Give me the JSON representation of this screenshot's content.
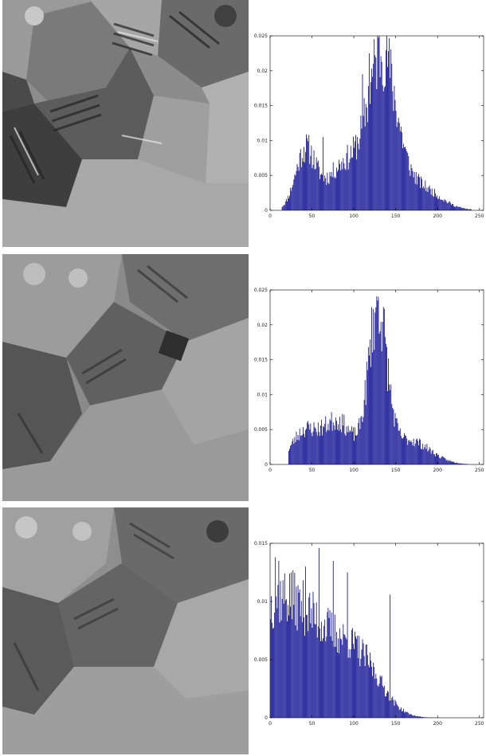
{
  "colors": {
    "bar": "#00008b",
    "axis": "#000000"
  },
  "chart_data": [
    {
      "type": "bar",
      "title": "",
      "xlabel": "",
      "ylabel": "",
      "xlim": [
        0,
        255
      ],
      "ylim": [
        0,
        0.025
      ],
      "x_ticks": [
        "0",
        "50",
        "100",
        "150",
        "200",
        "250"
      ],
      "y_ticks": [
        "0",
        "0.005",
        "0.01",
        "0.015",
        "0.02",
        "0.025"
      ],
      "image_name": "source-image-1",
      "distribution": {
        "modes": [
          {
            "center": 42,
            "width": 12,
            "height": 0.0085
          },
          {
            "center": 88,
            "width": 20,
            "height": 0.0065
          },
          {
            "center": 133,
            "width": 17,
            "height": 0.0215
          },
          {
            "center": 175,
            "width": 25,
            "height": 0.0035
          }
        ],
        "start": 14,
        "end": 240,
        "spikes": [
          {
            "x": 63,
            "value": 0.0105
          },
          {
            "x": 110,
            "value": 0.0195
          },
          {
            "x": 118,
            "value": 0.0225
          },
          {
            "x": 141,
            "value": 0.0228
          }
        ],
        "seed": 11
      }
    },
    {
      "type": "bar",
      "title": "",
      "xlabel": "",
      "ylabel": "",
      "xlim": [
        0,
        255
      ],
      "ylim": [
        0,
        0.025
      ],
      "x_ticks": [
        "0",
        "50",
        "100",
        "150",
        "200",
        "250"
      ],
      "y_ticks": [
        "0",
        "0.005",
        "0.01",
        "0.015",
        "0.02",
        "0.025"
      ],
      "image_name": "source-image-2",
      "distribution": {
        "modes": [
          {
            "center": 40,
            "width": 15,
            "height": 0.0045
          },
          {
            "center": 80,
            "width": 18,
            "height": 0.0062
          },
          {
            "center": 128,
            "width": 11,
            "height": 0.0215
          },
          {
            "center": 165,
            "width": 25,
            "height": 0.0035
          }
        ],
        "start": 22,
        "end": 235,
        "spikes": [
          {
            "x": 128,
            "value": 0.0235
          },
          {
            "x": 126,
            "value": 0.0225
          }
        ],
        "seed": 23
      }
    },
    {
      "type": "bar",
      "title": "",
      "xlabel": "",
      "ylabel": "",
      "xlim": [
        0,
        255
      ],
      "ylim": [
        0,
        0.015
      ],
      "x_ticks": [
        "0",
        "50",
        "100",
        "150",
        "200",
        "250"
      ],
      "y_ticks": [
        "0",
        "0.005",
        "0.01",
        "0.015"
      ],
      "image_name": "source-image-3",
      "distribution": {
        "modes": [
          {
            "center": 5,
            "width": 30,
            "height": 0.009
          },
          {
            "center": 60,
            "width": 30,
            "height": 0.006
          },
          {
            "center": 110,
            "width": 25,
            "height": 0.004
          }
        ],
        "start": 0,
        "end": 220,
        "spikes": [
          {
            "x": 6,
            "value": 0.0138
          },
          {
            "x": 10,
            "value": 0.0135
          },
          {
            "x": 25,
            "value": 0.0125
          },
          {
            "x": 42,
            "value": 0.013
          },
          {
            "x": 58,
            "value": 0.0146
          },
          {
            "x": 75,
            "value": 0.0135
          },
          {
            "x": 92,
            "value": 0.0125
          },
          {
            "x": 143,
            "value": 0.0106
          }
        ],
        "seed": 37
      }
    }
  ]
}
